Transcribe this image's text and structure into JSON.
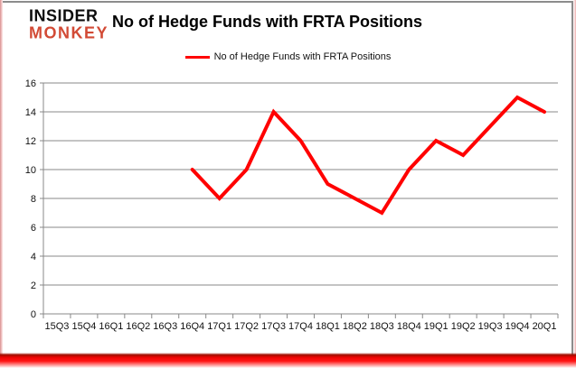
{
  "brand": {
    "line1": "INSIDER",
    "line2": "MONKEY",
    "accent_color": "#d24a35"
  },
  "header": {
    "title": "No of Hedge Funds with FRTA Positions"
  },
  "legend": {
    "label": "No of Hedge Funds with FRTA Positions",
    "line_color": "#ff0000"
  },
  "chart_data": {
    "type": "line",
    "title": "No of Hedge Funds with FRTA Positions",
    "categories": [
      "15Q3",
      "15Q4",
      "16Q1",
      "16Q2",
      "16Q3",
      "16Q4",
      "17Q1",
      "17Q2",
      "17Q3",
      "17Q4",
      "18Q1",
      "18Q2",
      "18Q3",
      "18Q4",
      "19Q1",
      "19Q2",
      "19Q3",
      "19Q4",
      "20Q1"
    ],
    "series": [
      {
        "name": "No of Hedge Funds with FRTA Positions",
        "color": "#ff0000",
        "values": [
          null,
          null,
          null,
          null,
          null,
          10,
          8,
          10,
          14,
          12,
          9,
          8,
          7,
          10,
          12,
          11,
          13,
          15,
          14
        ]
      }
    ],
    "ylim": [
      0,
      16
    ],
    "yticks": [
      0,
      2,
      4,
      6,
      8,
      10,
      12,
      14,
      16
    ],
    "grid": true,
    "grid_color": "#888888",
    "axis_color": "#888888",
    "legend_position": "top",
    "xlabel": "",
    "ylabel": ""
  },
  "frame": {
    "bottom_bar_color": "#ff0000",
    "side_border_color": "#d98f8f",
    "box_border_color": "#8c8c8c"
  }
}
